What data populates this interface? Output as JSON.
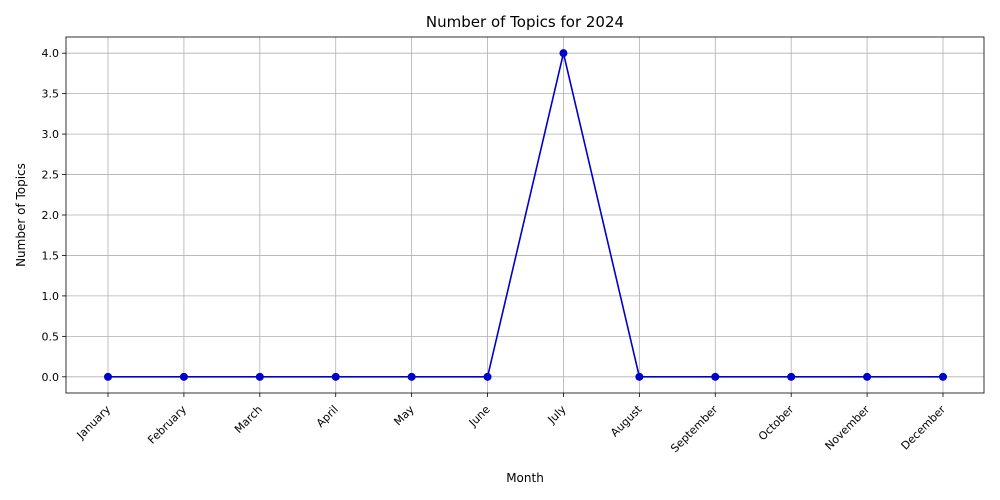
{
  "chart_data": {
    "type": "line",
    "title": "Number of Topics for 2024",
    "xlabel": "Month",
    "ylabel": "Number of Topics",
    "categories": [
      "January",
      "February",
      "March",
      "April",
      "May",
      "June",
      "July",
      "August",
      "September",
      "October",
      "November",
      "December"
    ],
    "values": [
      0,
      0,
      0,
      0,
      0,
      0,
      4,
      0,
      0,
      0,
      0,
      0
    ],
    "ylim": [
      -0.2,
      4.2
    ],
    "yticks": [
      "0.0",
      "0.5",
      "1.0",
      "1.5",
      "2.0",
      "2.5",
      "3.0",
      "3.5",
      "4.0"
    ],
    "grid": true,
    "line_color": "#0000cc",
    "marker": "circle"
  }
}
